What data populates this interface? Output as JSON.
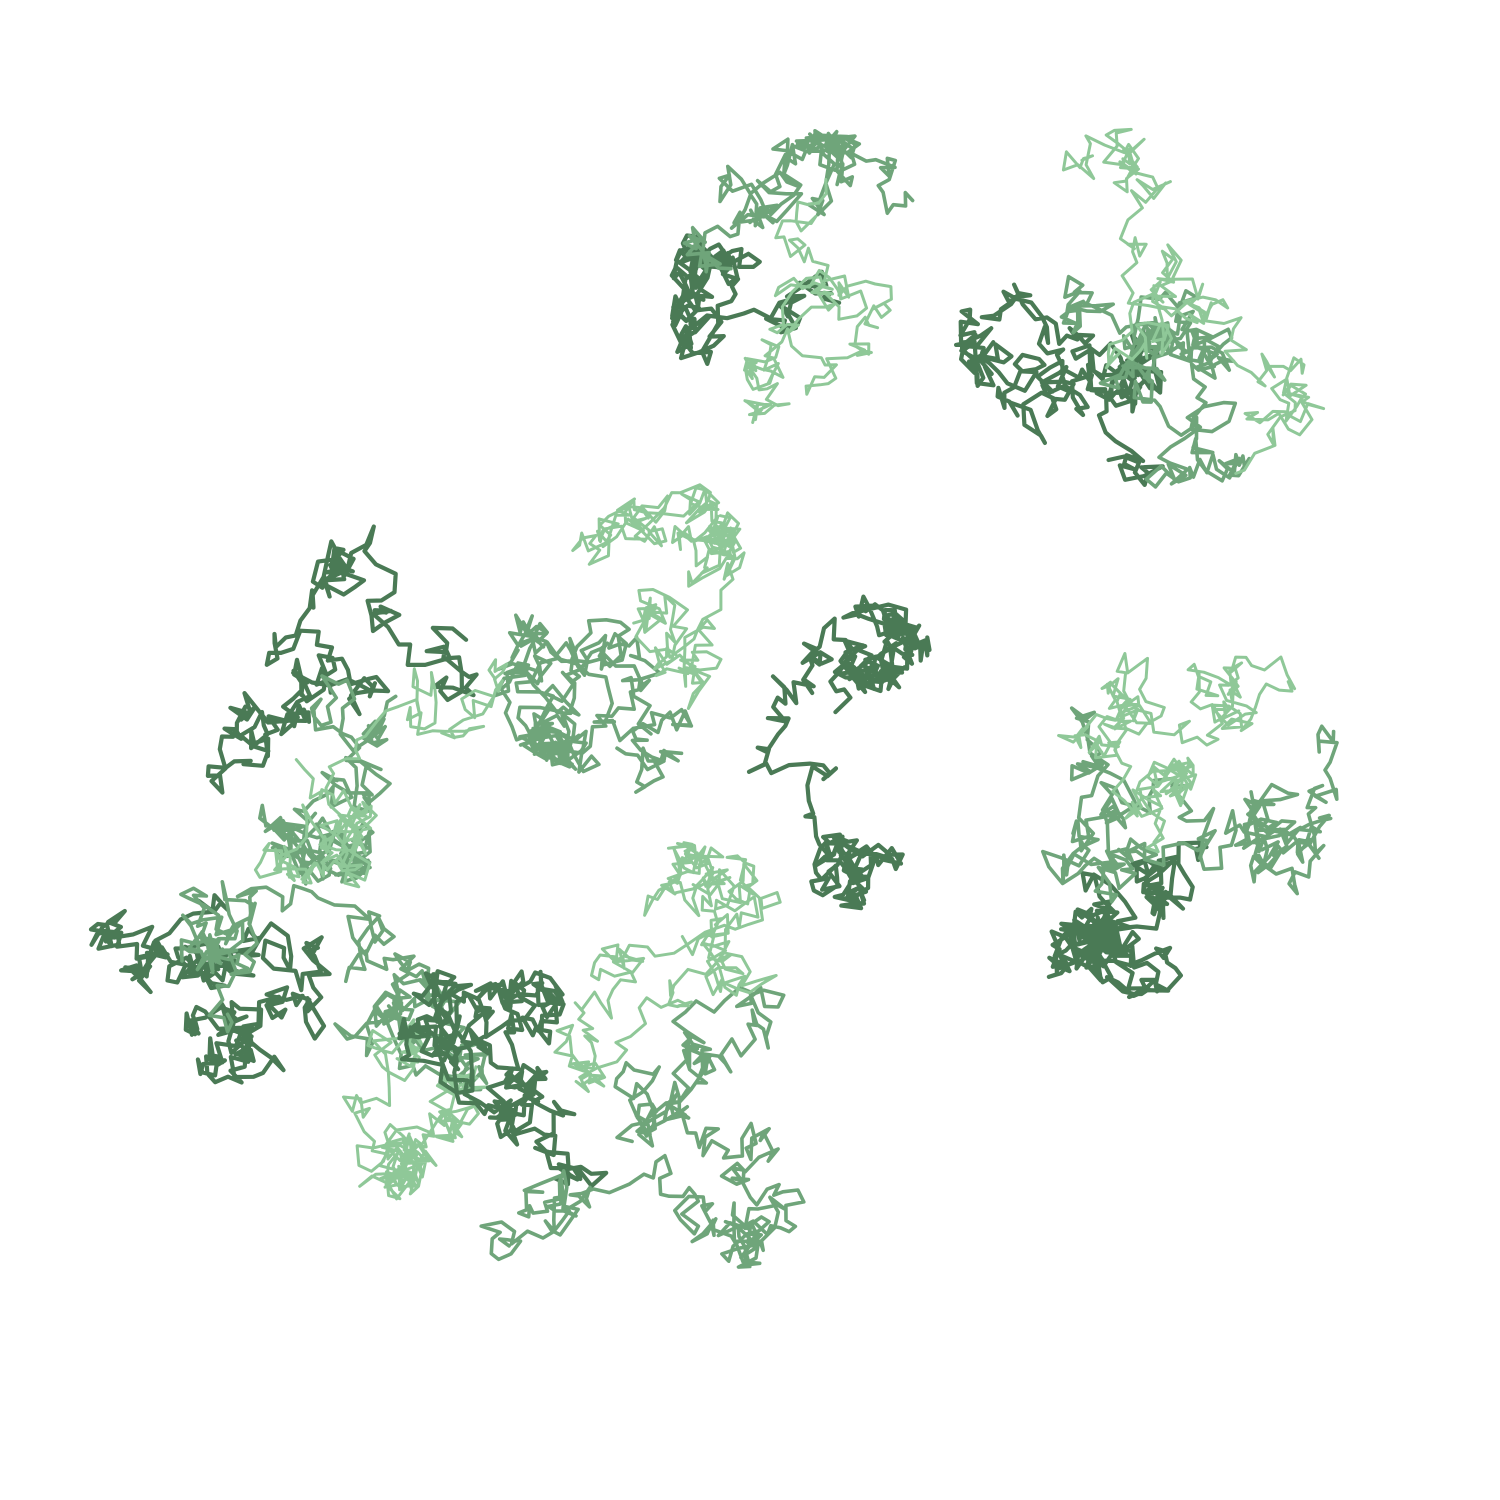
{
  "scene": {
    "background_color": "#ffffff",
    "subject": "protein-backbone-ribbon-render",
    "colors": {
      "ribbon_light": "#8fc898",
      "ribbon_mid": "#6fa57a",
      "ribbon_dark": "#4a7a55"
    },
    "domains": [
      "upper-center-lobe",
      "upper-right-lobe",
      "central-core",
      "right-middle-lobe",
      "left-upper-lobe",
      "left-lower-lobe",
      "bottom-center-lobe"
    ]
  }
}
